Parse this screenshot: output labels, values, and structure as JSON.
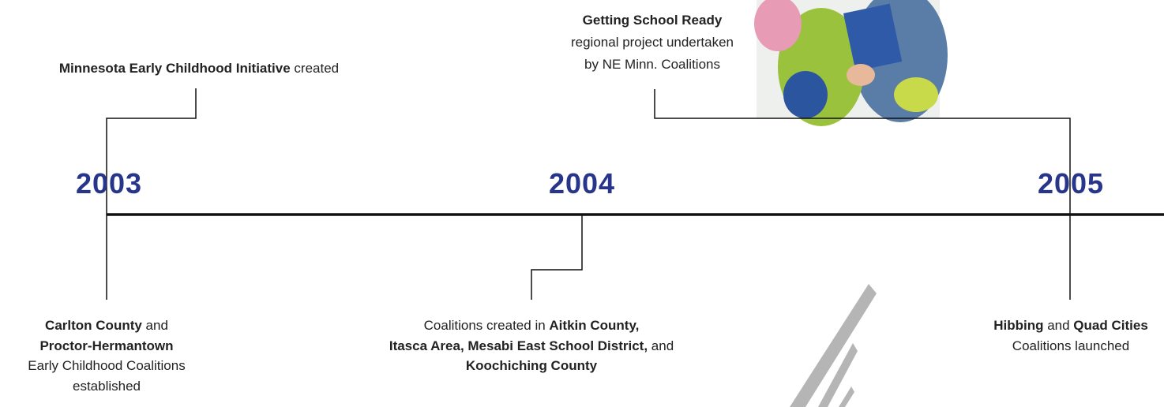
{
  "timeline": {
    "years": [
      "2003",
      "2004",
      "2005"
    ],
    "events": [
      {
        "lines": [
          [
            "Minnesota Early Childhood Initiative",
            " created"
          ]
        ]
      },
      {
        "lines": [
          [
            "Getting School Ready"
          ],
          [
            "regional project undertaken"
          ],
          [
            "by NE Minn. Coalitions"
          ]
        ]
      },
      {
        "lines": [
          [
            "Carlton County",
            " and"
          ],
          [
            "Proctor-Hermantown"
          ],
          [
            "Early Childhood Coalitions"
          ],
          [
            "established"
          ]
        ]
      },
      {
        "lines": [
          [
            "Coalitions created in ",
            "Aitkin County,"
          ],
          [
            "Itasca Area, Mesabi East School District,",
            " and"
          ],
          [
            "Koochiching County"
          ]
        ]
      },
      {
        "lines": [
          [
            "Hibbing",
            " and ",
            "Quad Cities"
          ],
          [
            "Coalitions launched"
          ]
        ]
      }
    ]
  }
}
